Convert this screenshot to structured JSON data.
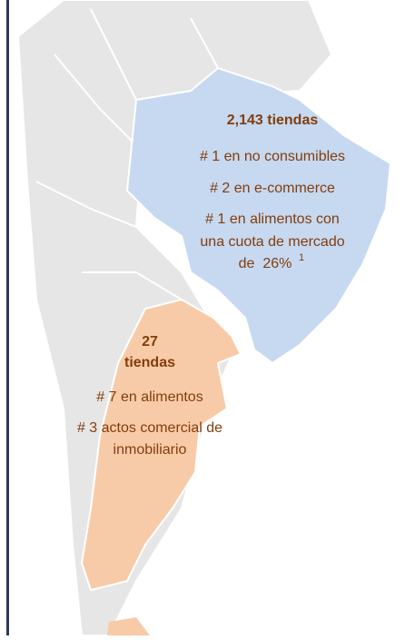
{
  "brazil": {
    "stores": "2,143 tiendas",
    "lines": [
      "# 1 en no consumibles",
      "# 2 en e-commerce",
      "# 1 en alimentos con",
      "una cuota de mercado",
      "de  26%"
    ],
    "footnote": "1"
  },
  "argentina": {
    "stores_count": "27",
    "stores_label": "tiendas",
    "lines": [
      "# 7 en alimentos",
      "# 3 actos comercial de",
      "inmobiliario"
    ]
  }
}
